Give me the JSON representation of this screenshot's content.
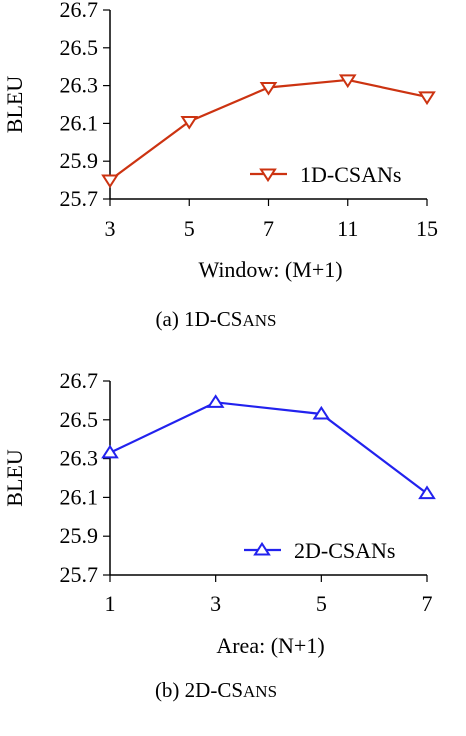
{
  "chart_data": [
    {
      "type": "line",
      "caption_prefix": "(a) 1D-CS",
      "caption_suffix": "ANs",
      "xlabel": "Window: (M+1)",
      "ylabel": "BLEU",
      "categories": [
        "3",
        "5",
        "7",
        "11",
        "15"
      ],
      "ylim": [
        25.7,
        26.7
      ],
      "yticks": [
        "25.7",
        "25.9",
        "26.1",
        "26.3",
        "26.5",
        "26.7"
      ],
      "series": [
        {
          "name": "1D-CSANs",
          "values": [
            25.8,
            26.11,
            26.29,
            26.33,
            26.24
          ],
          "marker": "triangle-down",
          "color": "#cc3311"
        }
      ],
      "legend_position": "bottom-right",
      "grid": false
    },
    {
      "type": "line",
      "caption_prefix": "(b) 2D-CS",
      "caption_suffix": "ANs",
      "xlabel": "Area: (N+1)",
      "ylabel": "BLEU",
      "categories": [
        "1",
        "3",
        "5",
        "7"
      ],
      "ylim": [
        25.7,
        26.7
      ],
      "yticks": [
        "25.7",
        "25.9",
        "26.1",
        "26.3",
        "26.5",
        "26.7"
      ],
      "series": [
        {
          "name": "2D-CSANs",
          "values": [
            26.33,
            26.59,
            26.53,
            26.12
          ],
          "marker": "triangle-up",
          "color": "#2222ee"
        }
      ],
      "legend_position": "bottom-right",
      "grid": false
    }
  ]
}
